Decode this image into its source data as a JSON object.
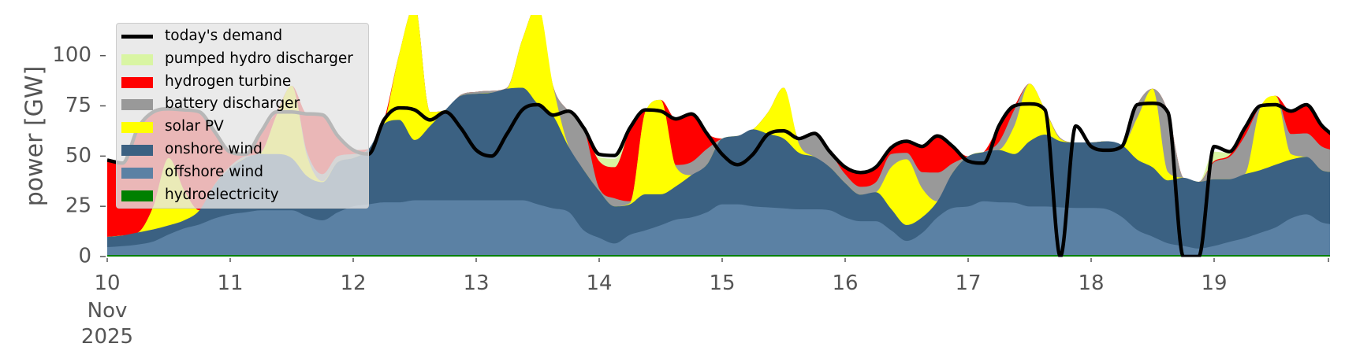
{
  "chart_data": {
    "type": "area",
    "stacked": true,
    "ylabel": "power [GW]",
    "xlabel": "",
    "ylim": [
      0,
      120
    ],
    "yticks": [
      0,
      25,
      50,
      75,
      100
    ],
    "xtick_labels": [
      "10",
      "11",
      "12",
      "13",
      "14",
      "15",
      "16",
      "17",
      "18",
      "19"
    ],
    "xtick_sublabels": [
      "Nov",
      "2025"
    ],
    "grid": false,
    "legend_position": "top-left",
    "x": [
      "2025-11-10 00:00",
      "2025-11-10 03:00",
      "2025-11-10 06:00",
      "2025-11-10 09:00",
      "2025-11-10 12:00",
      "2025-11-10 15:00",
      "2025-11-10 18:00",
      "2025-11-10 21:00",
      "2025-11-11 00:00",
      "2025-11-11 03:00",
      "2025-11-11 06:00",
      "2025-11-11 09:00",
      "2025-11-11 12:00",
      "2025-11-11 15:00",
      "2025-11-11 18:00",
      "2025-11-11 21:00",
      "2025-11-12 00:00",
      "2025-11-12 03:00",
      "2025-11-12 06:00",
      "2025-11-12 09:00",
      "2025-11-12 12:00",
      "2025-11-12 15:00",
      "2025-11-12 18:00",
      "2025-11-12 21:00",
      "2025-11-13 00:00",
      "2025-11-13 03:00",
      "2025-11-13 06:00",
      "2025-11-13 09:00",
      "2025-11-13 12:00",
      "2025-11-13 15:00",
      "2025-11-13 18:00",
      "2025-11-13 21:00",
      "2025-11-14 00:00",
      "2025-11-14 03:00",
      "2025-11-14 06:00",
      "2025-11-14 09:00",
      "2025-11-14 12:00",
      "2025-11-14 15:00",
      "2025-11-14 18:00",
      "2025-11-14 21:00",
      "2025-11-15 00:00",
      "2025-11-15 03:00",
      "2025-11-15 06:00",
      "2025-11-15 09:00",
      "2025-11-15 12:00",
      "2025-11-15 15:00",
      "2025-11-15 18:00",
      "2025-11-15 21:00",
      "2025-11-16 00:00",
      "2025-11-16 03:00",
      "2025-11-16 06:00",
      "2025-11-16 09:00",
      "2025-11-16 12:00",
      "2025-11-16 15:00",
      "2025-11-16 18:00",
      "2025-11-16 21:00",
      "2025-11-17 00:00",
      "2025-11-17 03:00",
      "2025-11-17 06:00",
      "2025-11-17 09:00",
      "2025-11-17 12:00",
      "2025-11-17 15:00",
      "2025-11-17 18:00",
      "2025-11-17 21:00",
      "2025-11-18 00:00",
      "2025-11-18 03:00",
      "2025-11-18 06:00",
      "2025-11-18 09:00",
      "2025-11-18 12:00",
      "2025-11-18 15:00",
      "2025-11-18 18:00",
      "2025-11-18 21:00",
      "2025-11-19 00:00",
      "2025-11-19 03:00",
      "2025-11-19 06:00",
      "2025-11-19 09:00",
      "2025-11-19 12:00",
      "2025-11-19 15:00",
      "2025-11-19 18:00",
      "2025-11-19 21:00",
      "2025-11-19 23:00"
    ],
    "series": [
      {
        "name": "hydroelectricity",
        "color": "#008000",
        "values": [
          0.8,
          0.8,
          0.8,
          0.8,
          0.8,
          0.8,
          0.8,
          0.8,
          0.8,
          0.8,
          0.8,
          0.8,
          0.8,
          0.8,
          0.8,
          0.8,
          0.8,
          0.8,
          0.8,
          0.8,
          0.8,
          0.8,
          0.8,
          0.8,
          0.8,
          0.8,
          0.8,
          0.8,
          0.8,
          0.8,
          0.8,
          0.8,
          0.8,
          0.8,
          0.8,
          0.8,
          0.8,
          0.8,
          0.8,
          0.8,
          0.8,
          0.8,
          0.8,
          0.8,
          0.8,
          0.8,
          0.8,
          0.8,
          0.8,
          0.8,
          0.8,
          0.8,
          0.8,
          0.8,
          0.8,
          0.8,
          0.8,
          0.8,
          0.8,
          0.8,
          0.8,
          0.8,
          0.8,
          0.8,
          0.8,
          0.8,
          0.8,
          0.8,
          0.8,
          0.8,
          0.8,
          0.8,
          0.8,
          0.8,
          0.8,
          0.8,
          0.8,
          0.8,
          0.8,
          0.8,
          0.8
        ]
      },
      {
        "name": "offshore wind",
        "color": "#5b81a4",
        "values": [
          3.9,
          4.4,
          5.2,
          6.7,
          10.2,
          13.2,
          15.2,
          18.2,
          20.2,
          21.2,
          22.2,
          22.2,
          22.2,
          19.2,
          17.2,
          21.2,
          24.2,
          25.2,
          26.2,
          26.2,
          27.2,
          27.2,
          27.2,
          27.2,
          27.2,
          27.2,
          27.2,
          27.2,
          25.2,
          23.2,
          21.5,
          12.2,
          8.5,
          5.7,
          10,
          12.2,
          14.8,
          17.6,
          18.7,
          21.2,
          25.2,
          25.2,
          24.2,
          23.7,
          23.2,
          22.7,
          22.7,
          22.2,
          18.7,
          16.8,
          16.8,
          12.2,
          7,
          10.9,
          18.7,
          23.4,
          24.1,
          26.7,
          26.2,
          26,
          24.1,
          24.1,
          23.7,
          23.4,
          23.4,
          22.8,
          18.9,
          12.4,
          9.1,
          5.8,
          4.5,
          3.2,
          4.5,
          6.5,
          8.4,
          11,
          13.7,
          18.2,
          20.2,
          16.2,
          15.2
        ]
      },
      {
        "name": "onshore wind",
        "color": "#3b6182",
        "values": [
          5.1,
          5.3,
          6,
          6,
          4.5,
          4,
          7,
          17,
          23,
          27,
          28,
          28,
          26,
          20,
          19,
          25,
          24,
          27.5,
          39,
          41,
          30,
          37,
          45,
          52,
          53,
          53.5,
          55.5,
          56,
          50,
          46,
          32.5,
          30,
          23.4,
          18.5,
          15.2,
          18,
          15.4,
          16.6,
          21,
          23.7,
          32.7,
          34,
          38.3,
          36.5,
          34.7,
          28.1,
          26.1,
          21.5,
          17.1,
          13.2,
          14.4,
          10.6,
          7.9,
          7.8,
          8,
          17.6,
          25,
          24.5,
          26,
          24.2,
          32.5,
          35.8,
          32.9,
          32.6,
          32.6,
          33.8,
          35.8,
          35.1,
          34.5,
          31.3,
          33.9,
          33.2,
          33.2,
          31.2,
          31.8,
          31.2,
          31.2,
          29.3,
          28.6,
          26,
          26
        ]
      },
      {
        "name": "solar PV",
        "color": "#ffff00",
        "values": [
          0,
          0,
          0,
          11.5,
          33.5,
          15,
          0,
          0,
          0,
          0,
          0.5,
          19,
          36,
          10,
          0.5,
          0,
          0,
          0,
          0,
          33,
          67,
          7,
          0,
          0,
          0,
          0,
          0,
          24,
          49,
          15,
          0.2,
          0,
          0,
          0,
          0.5,
          41,
          47,
          9.5,
          0,
          0,
          0,
          0,
          0,
          11,
          25.3,
          4.4,
          0,
          0,
          0,
          0,
          0,
          20.9,
          32.7,
          14.5,
          0,
          0,
          0,
          0,
          0,
          14,
          28.6,
          12.3,
          1.1,
          0,
          0,
          0,
          0,
          20.7,
          39.1,
          4.1,
          0,
          0,
          0,
          0,
          0,
          31,
          34.3,
          2.7,
          0,
          0,
          0
        ]
      },
      {
        "name": "battery discharger",
        "color": "#999999",
        "values": [
          0,
          0,
          0,
          0,
          0,
          0,
          0,
          0,
          1,
          1,
          0.5,
          0,
          0,
          2,
          3.5,
          3,
          2,
          0,
          0,
          0,
          0,
          0,
          0,
          0.5,
          1,
          1,
          0.5,
          0,
          0,
          0,
          17.4,
          21,
          1.3,
          4,
          1,
          0,
          0,
          1.1,
          6.5,
          7.8,
          0,
          0,
          0,
          0,
          0,
          2.7,
          11.7,
          7.7,
          4.4,
          3.9,
          5,
          6.5,
          3.2,
          8,
          14.3,
          4.6,
          0,
          0,
          4,
          8,
          0,
          0,
          0.5,
          0,
          0,
          0,
          0,
          6.6,
          0,
          30,
          0,
          0,
          8.5,
          11.1,
          19,
          1,
          0,
          10,
          11.7,
          11.8,
          11
        ]
      },
      {
        "name": "hydrogen turbine",
        "color": "#ff0000",
        "values": [
          37.7,
          36,
          52,
          47,
          24.5,
          40,
          49,
          26,
          7,
          1,
          10,
          2,
          0,
          19,
          29.5,
          10,
          2,
          0,
          2,
          0,
          0,
          0,
          0,
          0,
          0,
          0,
          0,
          0,
          0,
          0,
          0,
          0,
          13.5,
          15.5,
          35.5,
          1,
          0,
          22.9,
          24,
          7.8,
          0,
          0,
          0,
          0,
          0,
          0,
          0,
          0,
          3.5,
          7.1,
          7.5,
          3.2,
          5.8,
          12.8,
          18.2,
          8.4,
          0,
          0,
          8,
          2,
          0,
          0,
          0,
          0,
          0,
          0,
          0,
          0,
          0,
          0,
          0,
          0,
          0.5,
          0.9,
          4,
          0,
          0,
          11.4,
          14.3,
          10.4,
          8
        ]
      },
      {
        "name": "pumped hydro discharger",
        "color": "#d9f5a3",
        "values": [
          0,
          0,
          0,
          0,
          0,
          0,
          0,
          0,
          0,
          0,
          0,
          0,
          0,
          0,
          0,
          0,
          0,
          0,
          0,
          0,
          0,
          0,
          0,
          0,
          0,
          0,
          0,
          0,
          0,
          0,
          0,
          0,
          2,
          4.2,
          0,
          0,
          0,
          0,
          0,
          0,
          0,
          0,
          0,
          0,
          0,
          0,
          0,
          0,
          0,
          0,
          0,
          0,
          0,
          0,
          0,
          0,
          0,
          0,
          0,
          0,
          0,
          0,
          0,
          0,
          0,
          0,
          0,
          0,
          0,
          0,
          0,
          0,
          4.7,
          1.1,
          0,
          0,
          0,
          0,
          0,
          0,
          0
        ]
      }
    ],
    "demand": {
      "name": "today's demand",
      "color": "#000000",
      "values": [
        48,
        46.5,
        64,
        72,
        73.5,
        73,
        72,
        62,
        52,
        51,
        62,
        72,
        72,
        71,
        70.5,
        60,
        53,
        51,
        68,
        74,
        73,
        68,
        72,
        64,
        53,
        50,
        61,
        73,
        75.6,
        70.4,
        72.4,
        64,
        50.9,
        50.3,
        64,
        73,
        72.4,
        68.5,
        71,
        61.3,
        50.9,
        45.7,
        50.9,
        61,
        62.6,
        58.7,
        61.3,
        52.2,
        44.5,
        41.8,
        44.5,
        54.2,
        57.4,
        54.8,
        60,
        54.8,
        47.5,
        46.5,
        65,
        75,
        76,
        73,
        0,
        65,
        54.8,
        52.9,
        54.8,
        75.6,
        76.3,
        71.7,
        0,
        0,
        54.8,
        52.2,
        64,
        75,
        75.6,
        72.4,
        75.6,
        65.2,
        60.7
      ]
    },
    "legend": [
      "today's demand",
      "pumped hydro discharger",
      "hydrogen turbine",
      "battery discharger",
      "solar PV",
      "onshore wind",
      "offshore wind",
      "hydroelectricity"
    ]
  }
}
